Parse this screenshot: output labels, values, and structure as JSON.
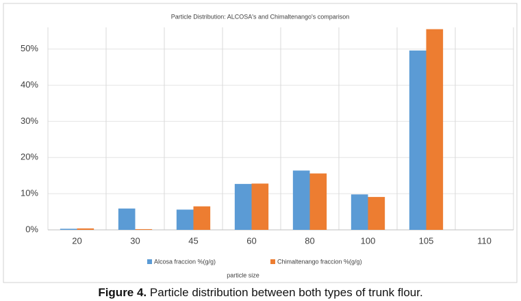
{
  "chart_data": {
    "type": "bar",
    "title": "Particle Distribution:  ALCOSA's and Chimaltenango's  comparison",
    "x_label": "particle size",
    "categories": [
      "20",
      "30",
      "45",
      "60",
      "80",
      "100",
      "105",
      "110"
    ],
    "series": [
      {
        "name": "Alcosa fraccion %(g/g)",
        "color": "#5b9bd5",
        "values": [
          0.3,
          5.9,
          5.6,
          12.7,
          16.4,
          9.8,
          49.6,
          0
        ]
      },
      {
        "name": "Chimaltenango fraccion %(g/g)",
        "color": "#ed7d31",
        "values": [
          0.4,
          0.2,
          6.5,
          12.8,
          15.6,
          9.1,
          55.5,
          0
        ]
      }
    ],
    "ylim": [
      0,
      56
    ],
    "yticks": [
      {
        "value": 0,
        "label": "0%"
      },
      {
        "value": 10,
        "label": "10%"
      },
      {
        "value": 20,
        "label": "20%"
      },
      {
        "value": 30,
        "label": "30%"
      },
      {
        "value": 40,
        "label": "40%"
      },
      {
        "value": 50,
        "label": "50%"
      }
    ],
    "grid": true,
    "legend": "bottom"
  },
  "caption": {
    "label": "Figure 4.",
    "text": "Particle distribution between both types of trunk flour."
  }
}
